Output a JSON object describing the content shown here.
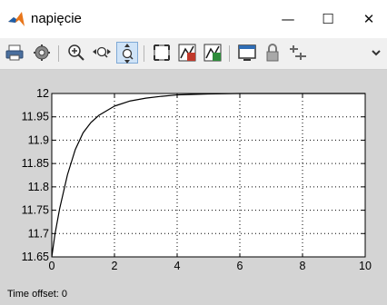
{
  "window": {
    "title": "napięcie",
    "minimize": "—",
    "maximize": "☐",
    "close": "✕"
  },
  "toolbar": {
    "icons": [
      "printer-icon",
      "settings-gear-icon",
      "zoom-in-icon",
      "zoom-x-icon",
      "zoom-y-icon",
      "autoscale-icon",
      "save-axes-settings-icon",
      "restore-axes-settings-icon",
      "floating-scope-icon",
      "lock-axes-icon",
      "signal-selection-icon",
      "more-chevron-icon"
    ]
  },
  "status": {
    "label": "Time offset:",
    "value": "0"
  },
  "colors": {
    "background": "#d4d4d4",
    "axes": "#ffffff",
    "trace": "#000000"
  },
  "chart_data": {
    "type": "line",
    "x": [
      0,
      0.1,
      0.25,
      0.5,
      0.75,
      1.0,
      1.25,
      1.5,
      2.0,
      2.5,
      3.0,
      3.5,
      4.0,
      5.0,
      6.0,
      8.0,
      10.0
    ],
    "series": [
      {
        "values": [
          11.65,
          11.698,
          11.753,
          11.826,
          11.88,
          11.916,
          11.938,
          11.953,
          11.973,
          11.984,
          11.99,
          11.994,
          11.997,
          11.999,
          12.0,
          12.0,
          12.0
        ]
      }
    ],
    "xlim": [
      0,
      10
    ],
    "ylim": [
      11.65,
      12
    ],
    "xticks": [
      "0",
      "2",
      "4",
      "6",
      "8",
      "10"
    ],
    "yticks": [
      "11.65",
      "11.7",
      "11.75",
      "11.8",
      "11.85",
      "11.9",
      "11.95",
      "12"
    ],
    "grid": true,
    "title": "",
    "xlabel": "",
    "ylabel": ""
  }
}
